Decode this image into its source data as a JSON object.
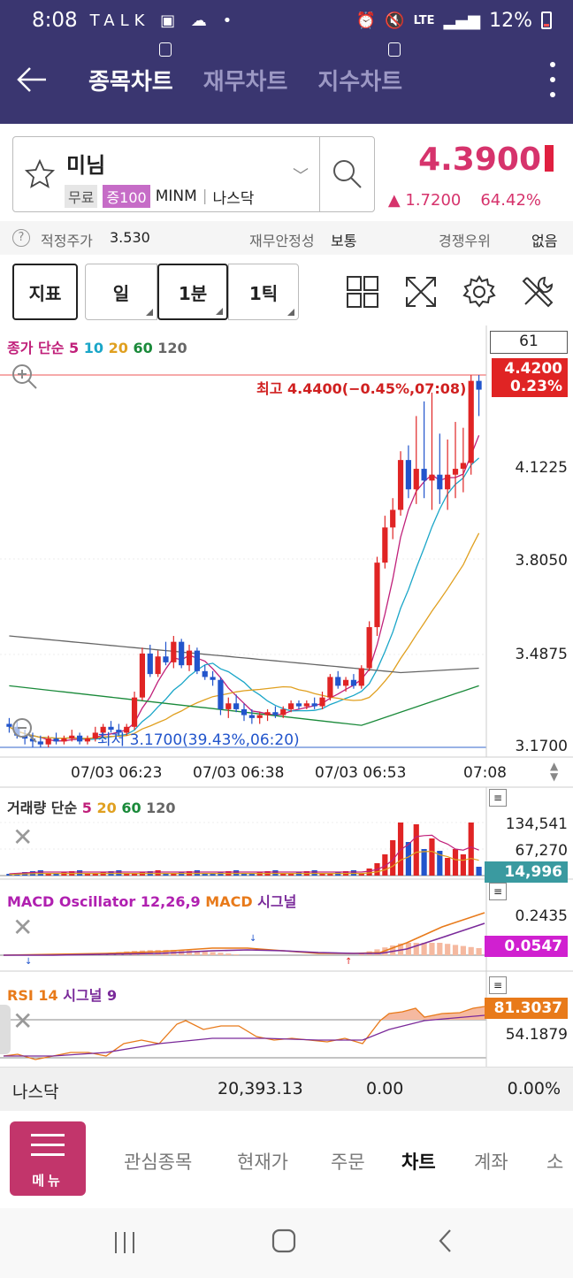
{
  "status_bar": {
    "time": "8:08",
    "notif_icons": "TALK ▣ ☁ •",
    "network": "LTE",
    "battery": "12%"
  },
  "header": {
    "tabs": [
      {
        "label": "종목차트",
        "active": true
      },
      {
        "label": "재무차트",
        "active": false
      },
      {
        "label": "지수차트",
        "active": false
      }
    ]
  },
  "stock": {
    "name": "미님",
    "badge_free": "무료",
    "badge_margin": "증100",
    "ticker": "MINM",
    "market": "나스닥",
    "price": "4.3900",
    "change": "▲ 1.7200",
    "change_pct": "64.42%"
  },
  "info": {
    "fair_price_label": "적정주가",
    "fair_price": "3.530",
    "stability_label": "재무안정성",
    "stability": "보통",
    "competition_label": "경쟁우위",
    "competition": "없음"
  },
  "toolbar": {
    "indicator": "지표",
    "day": "일",
    "minute": "1분",
    "tick": "1틱"
  },
  "price_chart": {
    "title_price": "종가 단순",
    "ma_labels": [
      "5",
      "10",
      "20",
      "60",
      "120"
    ],
    "count_box": "61",
    "high_label": "최고 4.4400(−0.45%,07:08)",
    "low_label": "최저 3.1700(39.43%,06:20)",
    "last_tag": "4.4200",
    "last_tag_pct": "0.23%",
    "y_labels": [
      "4.1225",
      "3.8050",
      "3.4875",
      "3.1700"
    ],
    "x_labels": [
      "07/03 06:23",
      "07/03 06:38",
      "07/03 06:53",
      "07:08"
    ]
  },
  "volume_chart": {
    "title": "거래량 단순",
    "ma_labels": [
      "5",
      "20",
      "60",
      "120"
    ],
    "y_labels": [
      "134,541",
      "67,270"
    ],
    "last_tag": "14,996"
  },
  "macd_chart": {
    "title": "MACD Oscillator 12,26,9",
    "macd": "MACD",
    "signal": "시그널",
    "y_label": "0.2435",
    "last_tag": "0.0547"
  },
  "rsi_chart": {
    "title": "RSI 14",
    "signal": "시그널 9",
    "y_label": "54.1879",
    "last_tag": "81.3037"
  },
  "ticker_bar": {
    "market": "나스닥",
    "value": "20,393.13",
    "change": "0.00",
    "pct": "0.00%"
  },
  "bottom_nav": {
    "menu": "메뉴",
    "items": [
      {
        "label": "관심종목",
        "active": false
      },
      {
        "label": "현재가",
        "active": false
      },
      {
        "label": "주문",
        "active": false
      },
      {
        "label": "차트",
        "active": true
      },
      {
        "label": "계좌",
        "active": false
      },
      {
        "label": "소",
        "active": false
      }
    ]
  },
  "colors": {
    "up": "#e02424",
    "down": "#2255cc",
    "accent": "#3a3670",
    "price": "#d6336c"
  }
}
